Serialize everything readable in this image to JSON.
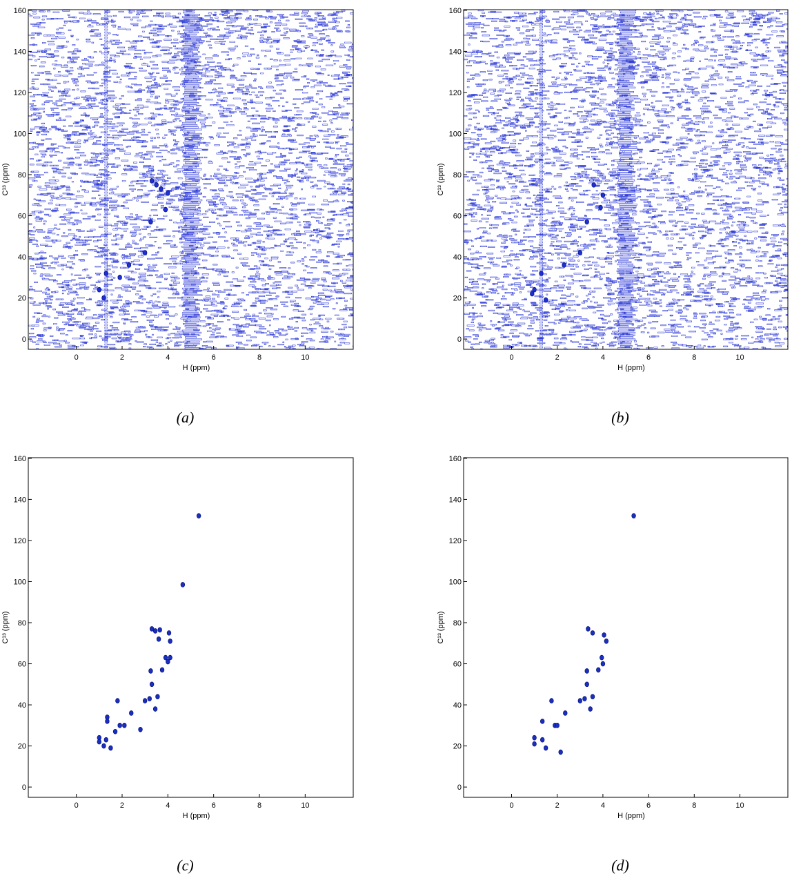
{
  "chart_data": [
    {
      "type": "scatter",
      "caption": "(a)",
      "xlabel": "H (ppm)",
      "ylabel": "C¹³ (ppm)",
      "color": "#1f2fd6",
      "contour_noise": true,
      "x": [
        3.3,
        3.5,
        3.7,
        4.0,
        3.9,
        3.25,
        2.3,
        1.3,
        1.0,
        1.2,
        1.9,
        3.0
      ],
      "values": [
        77,
        75,
        73,
        71,
        63,
        57,
        36,
        32,
        24,
        20,
        30,
        42
      ],
      "xlim": [
        -2.1,
        12.1
      ],
      "ylim": [
        -5,
        160.3
      ],
      "xticks": [
        0,
        2,
        4,
        6,
        8,
        10
      ],
      "yticks": [
        0,
        20,
        40,
        60,
        80,
        100,
        120,
        140,
        160
      ]
    },
    {
      "type": "scatter",
      "caption": "(b)",
      "xlabel": "H (ppm)",
      "ylabel": "C¹³ (ppm)",
      "color": "#1f2fd6",
      "contour_noise": true,
      "x": [
        3.6,
        4.0,
        3.9,
        3.3,
        3.0,
        2.3,
        1.3,
        1.0,
        1.5,
        0.9
      ],
      "values": [
        75,
        70,
        64,
        57,
        42,
        36,
        32,
        24,
        19,
        22
      ],
      "xlim": [
        -2.1,
        12.1
      ],
      "ylim": [
        -5,
        160.3
      ],
      "xticks": [
        0,
        2,
        4,
        6,
        8,
        10
      ],
      "yticks": [
        0,
        20,
        40,
        60,
        80,
        100,
        120,
        140,
        160
      ]
    },
    {
      "type": "scatter",
      "caption": "(c)",
      "xlabel": "H (ppm)",
      "ylabel": "C¹³ (ppm)",
      "color": "#1a2fc0",
      "contour_noise": false,
      "x": [
        5.35,
        4.65,
        3.3,
        3.45,
        3.65,
        4.05,
        4.1,
        3.6,
        3.9,
        4.1,
        4.0,
        3.75,
        3.25,
        3.3,
        3.0,
        3.2,
        3.55,
        3.45,
        1.8,
        1.35,
        1.35,
        1.0,
        1.0,
        1.3,
        1.5,
        1.2,
        1.9,
        2.1,
        2.4,
        1.7,
        2.8
      ],
      "values": [
        132,
        98.5,
        77,
        76,
        76.5,
        75,
        71,
        72,
        63,
        63,
        61,
        57,
        56.5,
        50,
        42,
        43,
        44,
        38,
        42,
        34,
        32,
        24,
        22,
        23,
        19,
        20,
        30,
        30,
        36,
        27,
        28
      ],
      "xlim": [
        -2.1,
        12.1
      ],
      "ylim": [
        -5,
        160.3
      ],
      "xticks": [
        0,
        2,
        4,
        6,
        8,
        10
      ],
      "yticks": [
        0,
        20,
        40,
        60,
        80,
        100,
        120,
        140,
        160
      ]
    },
    {
      "type": "scatter",
      "caption": "(d)",
      "xlabel": "H (ppm)",
      "ylabel": "C¹³ (ppm)",
      "color": "#1a2fc0",
      "contour_noise": false,
      "x": [
        5.35,
        3.35,
        3.55,
        4.05,
        4.15,
        3.95,
        3.8,
        4.0,
        3.3,
        3.3,
        3.0,
        3.2,
        3.55,
        3.45,
        1.75,
        1.35,
        1.0,
        1.0,
        1.35,
        1.5,
        1.9,
        2.0,
        2.35,
        2.15
      ],
      "values": [
        132,
        77,
        75,
        74,
        71,
        63,
        57,
        60,
        56.5,
        50,
        42,
        43,
        44,
        38,
        42,
        32,
        24,
        21,
        23,
        19,
        30,
        30,
        36,
        17
      ],
      "xlim": [
        -2.1,
        12.1
      ],
      "ylim": [
        -5,
        160.3
      ],
      "xticks": [
        0,
        2,
        4,
        6,
        8,
        10
      ],
      "yticks": [
        0,
        20,
        40,
        60,
        80,
        100,
        120,
        140,
        160
      ]
    }
  ]
}
